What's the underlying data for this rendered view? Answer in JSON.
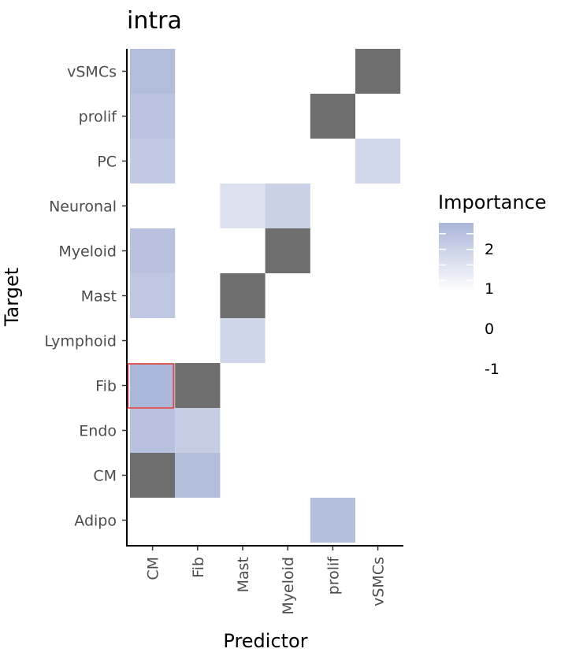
{
  "chart_data": {
    "type": "heatmap",
    "title": "intra",
    "xlabel": "Predictor",
    "ylabel": "Target",
    "x_categories": [
      "CM",
      "Fib",
      "Mast",
      "Myeloid",
      "prolif",
      "vSMCs"
    ],
    "y_categories": [
      "vSMCs",
      "prolif",
      "PC",
      "Neuronal",
      "Myeloid",
      "Mast",
      "Lymphoid",
      "Fib",
      "Endo",
      "CM",
      "Adipo"
    ],
    "na_color": "#6e6e6e",
    "highlight_color": "#e8423b",
    "cells": [
      {
        "x": "CM",
        "y": "vSMCs",
        "value": 2.3
      },
      {
        "x": "vSMCs",
        "y": "vSMCs",
        "value": null
      },
      {
        "x": "CM",
        "y": "prolif",
        "value": 1.9
      },
      {
        "x": "prolif",
        "y": "prolif",
        "value": null
      },
      {
        "x": "CM",
        "y": "PC",
        "value": 1.5
      },
      {
        "x": "vSMCs",
        "y": "PC",
        "value": 0.7
      },
      {
        "x": "Mast",
        "y": "Neuronal",
        "value": 0.1
      },
      {
        "x": "Myeloid",
        "y": "Neuronal",
        "value": 1.1
      },
      {
        "x": "CM",
        "y": "Myeloid",
        "value": 2.0
      },
      {
        "x": "Myeloid",
        "y": "Myeloid",
        "value": null
      },
      {
        "x": "CM",
        "y": "Mast",
        "value": 1.6
      },
      {
        "x": "Mast",
        "y": "Mast",
        "value": null
      },
      {
        "x": "Mast",
        "y": "Lymphoid",
        "value": 0.8
      },
      {
        "x": "CM",
        "y": "Fib",
        "value": 2.6,
        "highlight": true
      },
      {
        "x": "Fib",
        "y": "Fib",
        "value": null
      },
      {
        "x": "CM",
        "y": "Endo",
        "value": 2.0
      },
      {
        "x": "Fib",
        "y": "Endo",
        "value": 1.3
      },
      {
        "x": "CM",
        "y": "CM",
        "value": null
      },
      {
        "x": "Fib",
        "y": "CM",
        "value": 2.3
      },
      {
        "x": "prolif",
        "y": "Adipo",
        "value": 2.2
      }
    ],
    "legend": {
      "title": "Importance",
      "labels": [
        "2",
        "1",
        "0",
        "-1"
      ],
      "ticks": [
        2,
        1,
        0,
        -1
      ],
      "range": [
        -1.7,
        2.7
      ],
      "color_low": "#ffffff",
      "color_high": "#aab6d9"
    }
  }
}
